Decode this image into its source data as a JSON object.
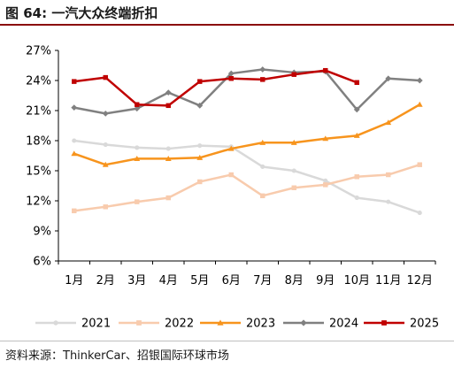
{
  "page": {
    "title": "图 64: 一汽大众终端折扣",
    "source": "资料来源：ThinkerCar、招银国际环球市场"
  },
  "chart_data": {
    "type": "line",
    "title": "",
    "xlabel": "",
    "ylabel": "",
    "categories": [
      "1月",
      "2月",
      "3月",
      "4月",
      "5月",
      "6月",
      "7月",
      "8月",
      "9月",
      "10月",
      "11月",
      "12月"
    ],
    "ylim": [
      6,
      27
    ],
    "yticks": [
      6,
      9,
      12,
      15,
      18,
      21,
      24,
      27
    ],
    "ytick_labels": [
      "6%",
      "9%",
      "12%",
      "15%",
      "18%",
      "21%",
      "24%",
      "27%"
    ],
    "grid": false,
    "legend_position": "bottom",
    "series": [
      {
        "name": "2021",
        "color": "#d9d9d9",
        "marker": "circle",
        "values": [
          18.0,
          17.6,
          17.3,
          17.2,
          17.5,
          17.4,
          15.4,
          15.0,
          14.0,
          12.3,
          11.9,
          10.8
        ]
      },
      {
        "name": "2022",
        "color": "#f8cbad",
        "marker": "square",
        "values": [
          11.0,
          11.4,
          11.9,
          12.3,
          13.9,
          14.6,
          12.5,
          13.3,
          13.6,
          14.4,
          14.6,
          15.6
        ]
      },
      {
        "name": "2023",
        "color": "#f7941d",
        "marker": "triangle",
        "values": [
          16.7,
          15.6,
          16.2,
          16.2,
          16.3,
          17.2,
          17.8,
          17.8,
          18.2,
          18.5,
          19.8,
          21.6
        ]
      },
      {
        "name": "2024",
        "color": "#808080",
        "marker": "diamond",
        "values": [
          21.3,
          20.7,
          21.2,
          22.8,
          21.5,
          24.7,
          25.1,
          24.8,
          24.9,
          21.1,
          24.2,
          24.0
        ]
      },
      {
        "name": "2025",
        "color": "#c00000",
        "marker": "square",
        "values": [
          23.9,
          24.3,
          21.6,
          21.5,
          23.9,
          24.2,
          24.1,
          24.6,
          25.0,
          23.8,
          null,
          null
        ]
      }
    ]
  }
}
